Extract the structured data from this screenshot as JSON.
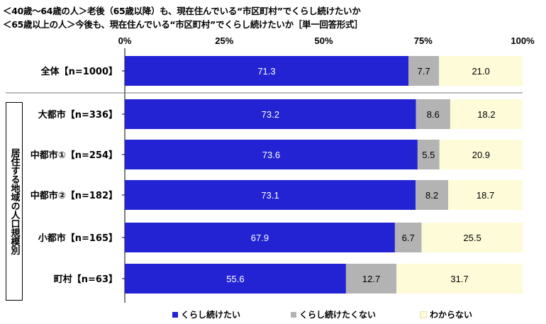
{
  "title": {
    "line1": "＜40歳～64歳の人＞老後（65歳以降）も、現在住んでいる“市区町村”でくらし続けたいか",
    "line2": "＜65歳以上の人＞今後も、現在住んでいる“市区町村”でくらし続けたいか［単一回答形式］"
  },
  "side_label": "居住する地域の人口規模別",
  "colors": {
    "series1": "#2323d4",
    "series2": "#b3b3b3",
    "series3": "#fdfbd8"
  },
  "chart_data": {
    "type": "bar",
    "orientation": "horizontal",
    "stacked": true,
    "x_tick_labels": [
      "0%",
      "25%",
      "50%",
      "75%",
      "100%"
    ],
    "xlim": [
      0,
      100
    ],
    "categories": [
      "全体【n=1000】",
      "大都市【n=336】",
      "中都市①【n=254】",
      "中都市②【n=182】",
      "小都市【n=165】",
      "町村【n=63】"
    ],
    "series": [
      {
        "name": "くらし続けたい",
        "values": [
          71.3,
          73.2,
          73.6,
          73.1,
          67.9,
          55.6
        ]
      },
      {
        "name": "くらし続けたくない",
        "values": [
          7.7,
          8.6,
          5.5,
          8.2,
          6.7,
          12.7
        ]
      },
      {
        "name": "わからない",
        "values": [
          21.0,
          18.2,
          20.9,
          18.7,
          25.5,
          31.7
        ]
      }
    ],
    "value_labels": [
      [
        "71.3",
        "7.7",
        "21.0"
      ],
      [
        "73.2",
        "8.6",
        "18.2"
      ],
      [
        "73.6",
        "5.5",
        "20.9"
      ],
      [
        "73.1",
        "8.2",
        "18.7"
      ],
      [
        "67.9",
        "6.7",
        "25.5"
      ],
      [
        "55.6",
        "12.7",
        "31.7"
      ]
    ],
    "legend_position": "bottom",
    "grid": false
  }
}
